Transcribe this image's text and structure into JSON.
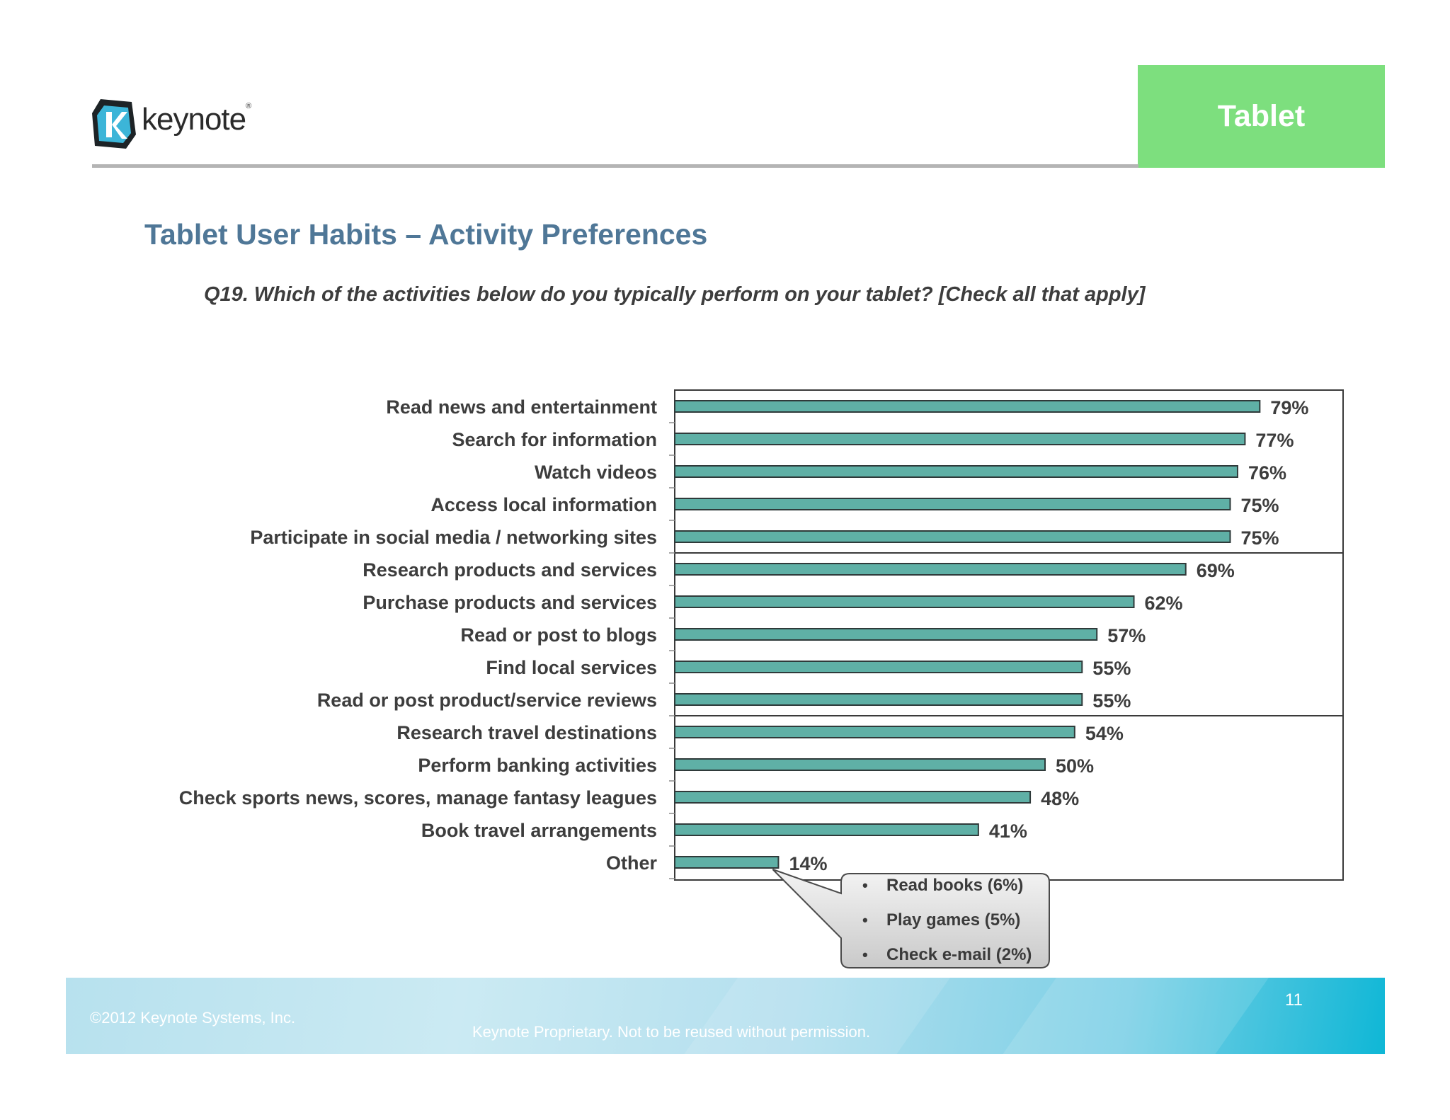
{
  "logo": {
    "text": "keynote"
  },
  "tab_label": "Tablet",
  "title": "Tablet User Habits – Activity Preferences",
  "question": "Q19. Which of the activities below do you typically perform on your tablet? [Check all that apply]",
  "colors": {
    "bar_fill": "#5fb0a6",
    "bar_stroke": "#2f3a3a",
    "title": "#4f7797",
    "tab": "#7ddf7e"
  },
  "chart_data": {
    "type": "bar",
    "orientation": "horizontal",
    "categories": [
      "Read news and entertainment",
      "Search for information",
      "Watch videos",
      "Access local information",
      "Participate in social media / networking sites",
      "Research products and services",
      "Purchase products and services",
      "Read or post to blogs",
      "Find local services",
      "Read or post product/service reviews",
      "Research travel destinations",
      "Perform banking activities",
      "Check sports news, scores, manage fantasy leagues",
      "Book travel arrangements",
      "Other"
    ],
    "values": [
      79,
      77,
      76,
      75,
      75,
      69,
      62,
      57,
      55,
      55,
      54,
      50,
      48,
      41,
      14
    ],
    "data_labels": [
      "79%",
      "77%",
      "76%",
      "75%",
      "75%",
      "69%",
      "62%",
      "57%",
      "55%",
      "55%",
      "54%",
      "50%",
      "48%",
      "41%",
      "14%"
    ],
    "xlim": [
      0,
      100
    ],
    "grid": false,
    "groups": [
      5,
      5,
      5
    ]
  },
  "callout": {
    "items": [
      "Read books (6%)",
      "Play games (5%)",
      "Check e-mail (2%)"
    ]
  },
  "footer": {
    "copyright": "©2012 Keynote Systems, Inc.",
    "proprietary": "Keynote Proprietary. Not to be reused without permission.",
    "page_number": "11"
  }
}
